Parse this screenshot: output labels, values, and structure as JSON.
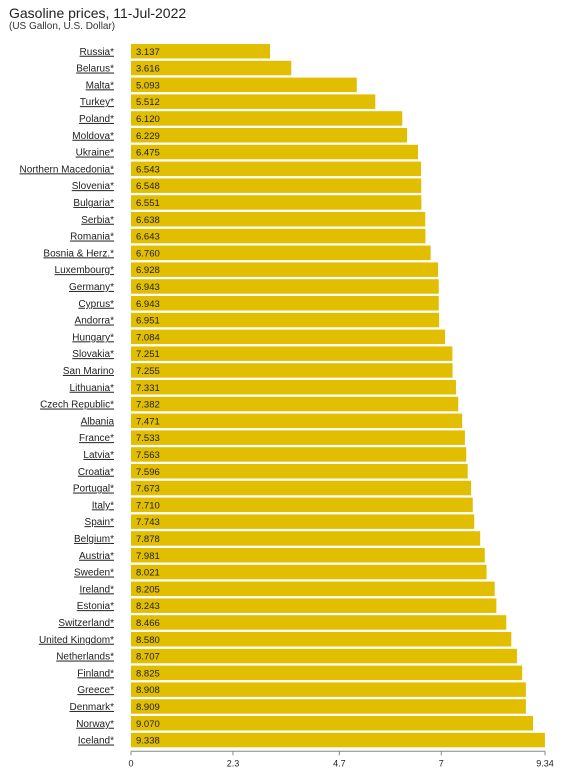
{
  "header": {
    "title": "Gasoline prices, 11-Jul-2022",
    "subtitle": "(US Gallon, U.S. Dollar)"
  },
  "chart_data": {
    "type": "bar",
    "orientation": "horizontal",
    "title": "Gasoline prices, 11-Jul-2022",
    "subtitle": "(US Gallon, U.S. Dollar)",
    "bar_color": "#E2BE00",
    "categories": [
      "Russia*",
      "Belarus*",
      "Malta*",
      "Turkey*",
      "Poland*",
      "Moldova*",
      "Ukraine*",
      "Northern Macedonia*",
      "Slovenia*",
      "Bulgaria*",
      "Serbia*",
      "Romania*",
      "Bosnia & Herz.*",
      "Luxembourg*",
      "Germany*",
      "Cyprus*",
      "Andorra*",
      "Hungary*",
      "Slovakia*",
      "San Marino",
      "Lithuania*",
      "Czech Republic*",
      "Albania",
      "France*",
      "Latvia*",
      "Croatia*",
      "Portugal*",
      "Italy*",
      "Spain*",
      "Belgium*",
      "Austria*",
      "Sweden*",
      "Ireland*",
      "Estonia*",
      "Switzerland*",
      "United Kingdom*",
      "Netherlands*",
      "Finland*",
      "Greece*",
      "Denmark*",
      "Norway*",
      "Iceland*"
    ],
    "value_labels": [
      "3.137",
      "3.616",
      "5.093",
      "5.512",
      "6.120",
      "6.229",
      "6.475",
      "6.543",
      "6.548",
      "6.551",
      "6.638",
      "6.643",
      "6.760",
      "6.928",
      "6.943",
      "6.943",
      "6.951",
      "7.084",
      "7.251",
      "7.255",
      "7.331",
      "7.382",
      "7.471",
      "7.533",
      "7.563",
      "7.596",
      "7.673",
      "7.710",
      "7.743",
      "7.878",
      "7.981",
      "8.021",
      "8.205",
      "8.243",
      "8.466",
      "8.580",
      "8.707",
      "8.825",
      "8.908",
      "8.909",
      "9.070",
      "9.338"
    ],
    "values": [
      3.137,
      3.616,
      5.093,
      5.512,
      6.12,
      6.229,
      6.475,
      6.543,
      6.548,
      6.551,
      6.638,
      6.643,
      6.76,
      6.928,
      6.943,
      6.943,
      6.951,
      7.084,
      7.251,
      7.255,
      7.331,
      7.382,
      7.471,
      7.533,
      7.563,
      7.596,
      7.673,
      7.71,
      7.743,
      7.878,
      7.981,
      8.021,
      8.205,
      8.243,
      8.466,
      8.58,
      8.707,
      8.825,
      8.908,
      8.909,
      9.07,
      9.338
    ],
    "xlim": [
      0,
      9.34
    ],
    "xticks": [
      0,
      2.3,
      4.7,
      7,
      9.34
    ],
    "xtick_labels": [
      "0",
      "2.3",
      "4.7",
      "7",
      "9.34"
    ],
    "grid": false,
    "legend": "none"
  }
}
